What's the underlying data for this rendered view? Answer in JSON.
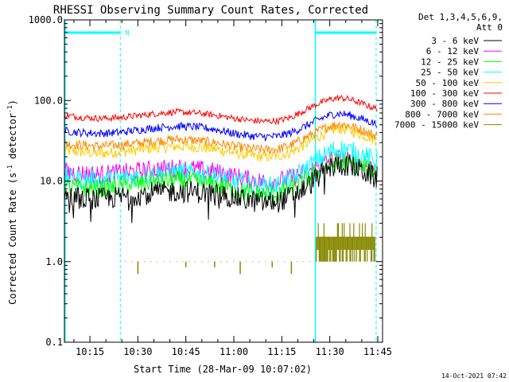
{
  "chart_data": {
    "type": "line",
    "title": "RHESSI Observing Summary Count Rates, Corrected",
    "xlabel": "Start Time (28-Mar-09 10:07:02)",
    "ylabel_parts": {
      "main": "Corrected Count Rate (s",
      "sup": "-1",
      "rest": " detector",
      "sup2": "-1",
      "end": ")"
    },
    "y_scale": "log",
    "ylim": [
      0.1,
      1000
    ],
    "xlim_minutes": [
      7.03,
      106.5
    ],
    "x_ticks": [
      {
        "minute": 15,
        "label": "10:15"
      },
      {
        "minute": 30,
        "label": "10:30"
      },
      {
        "minute": 45,
        "label": "10:45"
      },
      {
        "minute": 60,
        "label": "11:00"
      },
      {
        "minute": 75,
        "label": "11:15"
      },
      {
        "minute": 90,
        "label": "11:30"
      },
      {
        "minute": 105,
        "label": "11:45"
      }
    ],
    "y_ticks": [
      {
        "value": 0.1,
        "label": "0.1"
      },
      {
        "value": 1,
        "label": "1.0"
      },
      {
        "value": 10,
        "label": "10.0"
      },
      {
        "value": 100,
        "label": "100.0"
      },
      {
        "value": 1000,
        "label": "1000.0"
      }
    ],
    "legend_header": [
      "Det 1,3,4,5,6,9,",
      "Att 0"
    ],
    "legend_placement": "right",
    "timestamp": "14-Oct-2021 07:42",
    "flag_label": "N",
    "night_intervals_minutes": [
      [
        7.03,
        24.5
      ],
      [
        85.5,
        104.5
      ]
    ],
    "series": [
      {
        "name": "3 - 6 keV",
        "color": "#000000",
        "points": [
          [
            7,
            6.5
          ],
          [
            12,
            6.2
          ],
          [
            18,
            6.0
          ],
          [
            24,
            6.3
          ],
          [
            30,
            6.8
          ],
          [
            36,
            7.2
          ],
          [
            42,
            7.5
          ],
          [
            48,
            7.3
          ],
          [
            54,
            7.0
          ],
          [
            60,
            6.3
          ],
          [
            66,
            5.6
          ],
          [
            70,
            5.4
          ],
          [
            74,
            5.6
          ],
          [
            78,
            6.5
          ],
          [
            82,
            8.0
          ],
          [
            86,
            11
          ],
          [
            90,
            14.5
          ],
          [
            93,
            16
          ],
          [
            96,
            15.5
          ],
          [
            100,
            13.5
          ],
          [
            104,
            11
          ]
        ]
      },
      {
        "name": "6 - 12 keV",
        "color": "#ff00ff",
        "points": [
          [
            7,
            13
          ],
          [
            12,
            12.5
          ],
          [
            18,
            12
          ],
          [
            24,
            12.5
          ],
          [
            30,
            13.2
          ],
          [
            36,
            14
          ],
          [
            42,
            14.5
          ],
          [
            48,
            14
          ],
          [
            54,
            13
          ],
          [
            60,
            11.5
          ],
          [
            66,
            10.2
          ],
          [
            70,
            9.8
          ],
          [
            74,
            10
          ],
          [
            78,
            11
          ],
          [
            82,
            12.5
          ],
          [
            86,
            15
          ],
          [
            90,
            18
          ],
          [
            93,
            19
          ],
          [
            96,
            18
          ],
          [
            100,
            16
          ],
          [
            104,
            14
          ]
        ]
      },
      {
        "name": "12 - 25 keV",
        "color": "#00ff00",
        "points": [
          [
            7,
            8.5
          ],
          [
            12,
            8.2
          ],
          [
            18,
            8.0
          ],
          [
            24,
            8.5
          ],
          [
            30,
            9.2
          ],
          [
            36,
            9.8
          ],
          [
            42,
            10.2
          ],
          [
            48,
            9.8
          ],
          [
            54,
            9.0
          ],
          [
            60,
            7.8
          ],
          [
            66,
            7.0
          ],
          [
            70,
            6.8
          ],
          [
            74,
            7.0
          ],
          [
            78,
            8.0
          ],
          [
            82,
            10
          ],
          [
            86,
            13
          ],
          [
            90,
            16
          ],
          [
            93,
            17
          ],
          [
            96,
            16.5
          ],
          [
            100,
            15
          ],
          [
            104,
            13
          ]
        ]
      },
      {
        "name": "25 - 50 keV",
        "color": "#00ffff",
        "points": [
          [
            7,
            11
          ],
          [
            12,
            10.5
          ],
          [
            18,
            10.2
          ],
          [
            24,
            10.8
          ],
          [
            30,
            11.5
          ],
          [
            36,
            12.2
          ],
          [
            42,
            12.8
          ],
          [
            48,
            12.3
          ],
          [
            54,
            11.5
          ],
          [
            60,
            10
          ],
          [
            66,
            8.8
          ],
          [
            70,
            8.5
          ],
          [
            74,
            8.8
          ],
          [
            78,
            10.5
          ],
          [
            82,
            13.5
          ],
          [
            86,
            18
          ],
          [
            90,
            23
          ],
          [
            93,
            25
          ],
          [
            96,
            24
          ],
          [
            100,
            21
          ],
          [
            104,
            18
          ]
        ]
      },
      {
        "name": "50 - 100 keV",
        "color": "#ffcc00",
        "points": [
          [
            7,
            24
          ],
          [
            12,
            23
          ],
          [
            18,
            22
          ],
          [
            24,
            23
          ],
          [
            30,
            24.5
          ],
          [
            36,
            26
          ],
          [
            42,
            27
          ],
          [
            48,
            26.5
          ],
          [
            54,
            25
          ],
          [
            60,
            22.5
          ],
          [
            66,
            20.5
          ],
          [
            70,
            20
          ],
          [
            74,
            20.5
          ],
          [
            78,
            23
          ],
          [
            82,
            28
          ],
          [
            86,
            35
          ],
          [
            90,
            42
          ],
          [
            93,
            45
          ],
          [
            96,
            43
          ],
          [
            100,
            38
          ],
          [
            104,
            33
          ]
        ]
      },
      {
        "name": "100 - 300 keV",
        "color": "#ff0000",
        "points": [
          [
            7,
            66
          ],
          [
            12,
            62
          ],
          [
            18,
            60
          ],
          [
            24,
            61
          ],
          [
            30,
            65
          ],
          [
            36,
            69
          ],
          [
            42,
            72
          ],
          [
            48,
            70
          ],
          [
            54,
            66
          ],
          [
            60,
            60
          ],
          [
            66,
            56
          ],
          [
            70,
            55
          ],
          [
            74,
            56
          ],
          [
            78,
            62
          ],
          [
            82,
            75
          ],
          [
            86,
            90
          ],
          [
            90,
            103
          ],
          [
            93,
            108
          ],
          [
            96,
            104
          ],
          [
            100,
            92
          ],
          [
            104,
            80
          ]
        ]
      },
      {
        "name": "300 - 800 keV",
        "color": "#0000ff",
        "points": [
          [
            7,
            42
          ],
          [
            12,
            40
          ],
          [
            18,
            39
          ],
          [
            24,
            40
          ],
          [
            30,
            43
          ],
          [
            36,
            46
          ],
          [
            42,
            48
          ],
          [
            48,
            47
          ],
          [
            54,
            44
          ],
          [
            60,
            39
          ],
          [
            66,
            36
          ],
          [
            70,
            35.5
          ],
          [
            74,
            36
          ],
          [
            78,
            40
          ],
          [
            82,
            47
          ],
          [
            86,
            57
          ],
          [
            90,
            66
          ],
          [
            93,
            69
          ],
          [
            96,
            66
          ],
          [
            100,
            59
          ],
          [
            104,
            52
          ]
        ]
      },
      {
        "name": "800 - 7000 keV",
        "color": "#ff8800",
        "points": [
          [
            7,
            29
          ],
          [
            12,
            28
          ],
          [
            18,
            27
          ],
          [
            24,
            28
          ],
          [
            30,
            29.5
          ],
          [
            36,
            31.5
          ],
          [
            42,
            33
          ],
          [
            48,
            32
          ],
          [
            54,
            30
          ],
          [
            60,
            27
          ],
          [
            66,
            25
          ],
          [
            70,
            24.5
          ],
          [
            74,
            25
          ],
          [
            78,
            28
          ],
          [
            82,
            34
          ],
          [
            86,
            41
          ],
          [
            90,
            48
          ],
          [
            93,
            51
          ],
          [
            96,
            49
          ],
          [
            100,
            43
          ],
          [
            104,
            37
          ]
        ]
      },
      {
        "name": "7000 - 15000 keV",
        "color": "#888800",
        "points": []
      }
    ]
  }
}
